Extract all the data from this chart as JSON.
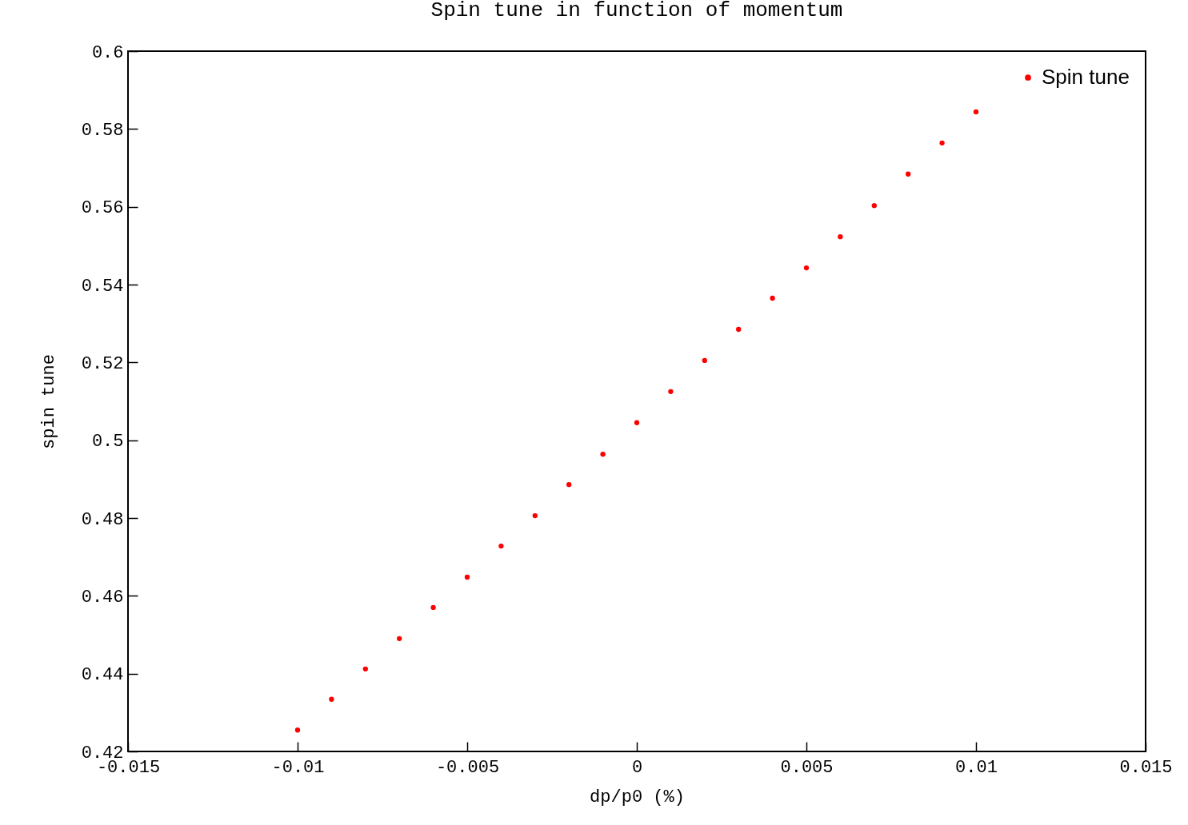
{
  "chart_data": {
    "type": "scatter",
    "title": "Spin tune in function of momentum",
    "xlabel": "dp/p0 (%)",
    "ylabel": "spin tune",
    "x": [
      -0.01,
      -0.009,
      -0.008,
      -0.007,
      -0.006,
      -0.005,
      -0.004,
      -0.003,
      -0.002,
      -0.001,
      0,
      0.001,
      0.002,
      0.003,
      0.004,
      0.005,
      0.006,
      0.007,
      0.008,
      0.009,
      0.01
    ],
    "series": [
      {
        "name": "Spin tune",
        "color": "#ff0000",
        "values": [
          0.4255,
          0.4334,
          0.4412,
          0.449,
          0.457,
          0.4648,
          0.4728,
          0.4806,
          0.4886,
          0.4964,
          0.5045,
          0.5125,
          0.5205,
          0.5285,
          0.5365,
          0.5443,
          0.5523,
          0.5603,
          0.5684,
          0.5764,
          0.5844
        ]
      }
    ],
    "xlim": [
      -0.015,
      0.015
    ],
    "xticks": [
      -0.015,
      -0.01,
      -0.005,
      0,
      0.005,
      0.01,
      0.015
    ],
    "ylim": [
      0.42,
      0.6
    ],
    "yticks": [
      0.42,
      0.44,
      0.46,
      0.48,
      0.5,
      0.52,
      0.54,
      0.56,
      0.58,
      0.6
    ],
    "grid": false,
    "legend": "top right",
    "marker": "circle"
  }
}
